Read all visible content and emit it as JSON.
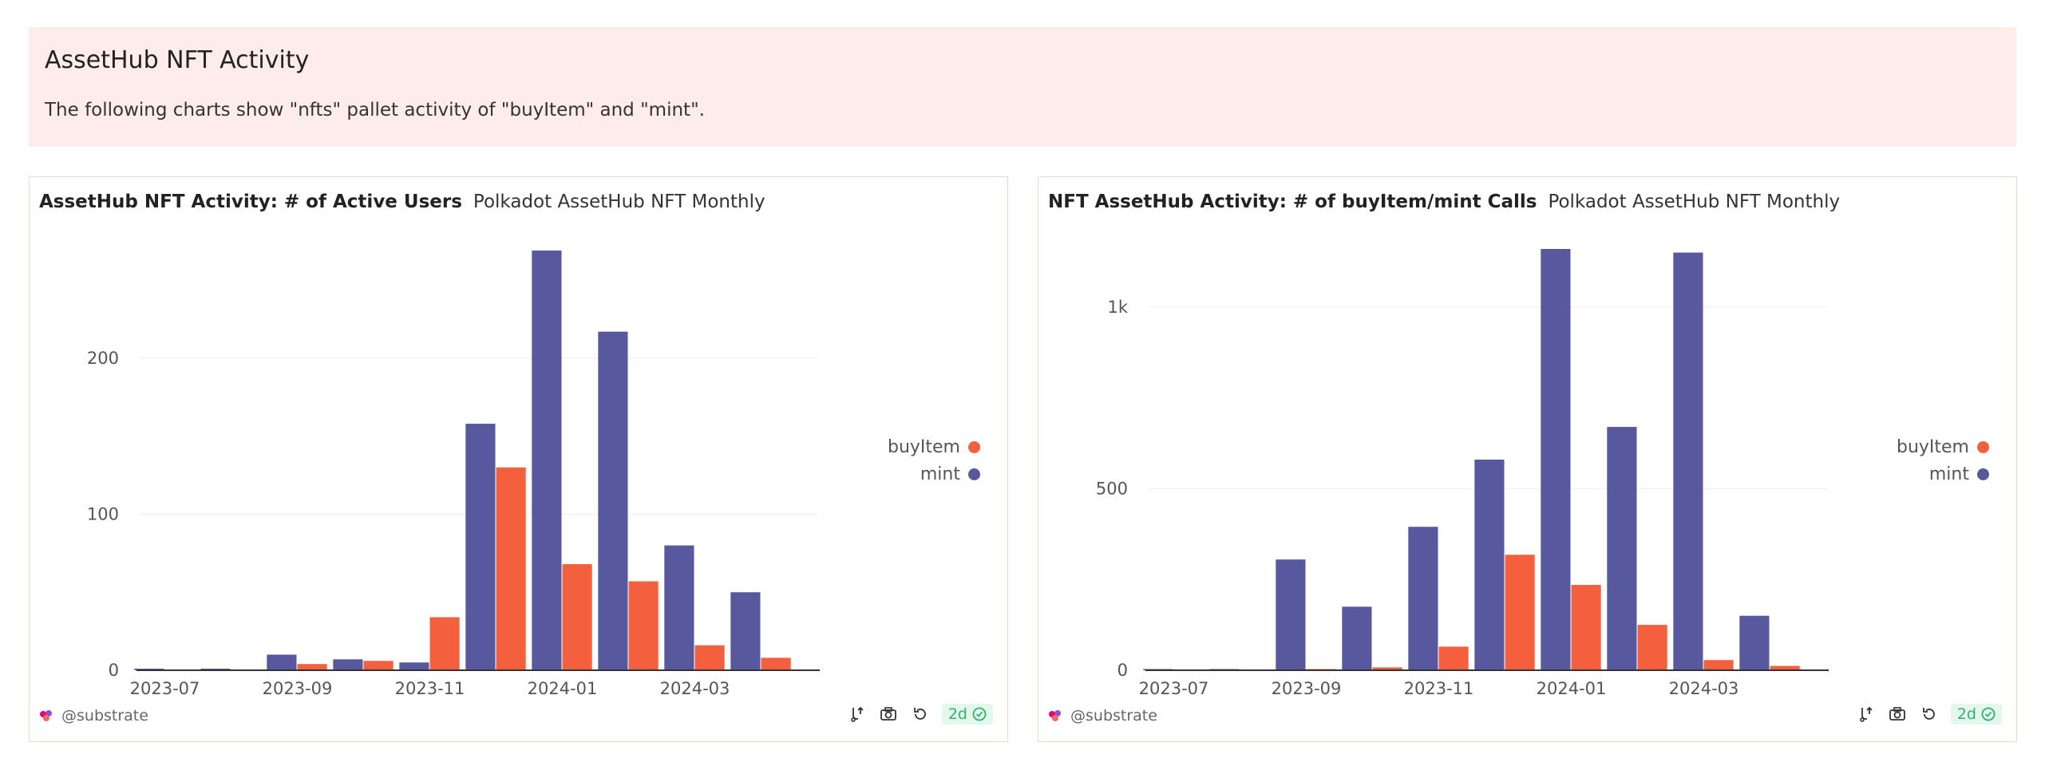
{
  "banner": {
    "title": "AssetHub NFT Activity",
    "description": "The following charts show \"nfts\" pallet activity of \"buyItem\" and \"mint\"."
  },
  "colors": {
    "buyItem": "#f4603e",
    "mint": "#57589e",
    "grid": "#eeeeee",
    "axis": "#333333"
  },
  "panels": [
    {
      "title": "AssetHub NFT Activity: # of Active Users",
      "subtitle": "Polkadot AssetHub NFT Monthly",
      "author": "@substrate",
      "badge": "2d",
      "legend": [
        "buyItem",
        "mint"
      ]
    },
    {
      "title": "NFT AssetHub Activity: # of buyItem/mint Calls",
      "subtitle": "Polkadot AssetHub NFT Monthly",
      "author": "@substrate",
      "badge": "2d",
      "legend": [
        "buyItem",
        "mint"
      ]
    }
  ],
  "chart_data": [
    {
      "type": "bar",
      "categories": [
        "2023-07",
        "2023-08",
        "2023-09",
        "2023-10",
        "2023-11",
        "2023-12",
        "2024-01",
        "2024-02",
        "2024-03",
        "2024-04"
      ],
      "series": [
        {
          "name": "mint",
          "values": [
            1,
            1,
            10,
            7,
            5,
            158,
            269,
            217,
            80,
            50
          ]
        },
        {
          "name": "buyItem",
          "values": [
            0,
            0,
            4,
            6,
            34,
            130,
            68,
            57,
            16,
            8
          ]
        }
      ],
      "ylim": [
        0,
        270
      ],
      "yticks": [
        0,
        100,
        200
      ],
      "ytick_labels": [
        "0",
        "100",
        "200"
      ],
      "xtick_labels": [
        "2023-07",
        "2023-09",
        "2023-11",
        "2024-01",
        "2024-03"
      ],
      "grid": true,
      "legend_position": "right"
    },
    {
      "type": "bar",
      "categories": [
        "2023-07",
        "2023-08",
        "2023-09",
        "2023-10",
        "2023-11",
        "2023-12",
        "2024-01",
        "2024-02",
        "2024-03",
        "2024-04"
      ],
      "series": [
        {
          "name": "mint",
          "values": [
            2,
            2,
            305,
            175,
            395,
            580,
            1160,
            670,
            1150,
            150
          ]
        },
        {
          "name": "buyItem",
          "values": [
            0,
            0,
            2,
            8,
            65,
            318,
            235,
            125,
            28,
            12
          ]
        }
      ],
      "ylim": [
        0,
        1160
      ],
      "yticks": [
        0,
        500,
        1000
      ],
      "ytick_labels": [
        "0",
        "500",
        "1k"
      ],
      "xtick_labels": [
        "2023-07",
        "2023-09",
        "2023-11",
        "2024-01",
        "2024-03"
      ],
      "grid": true,
      "legend_position": "right"
    }
  ]
}
